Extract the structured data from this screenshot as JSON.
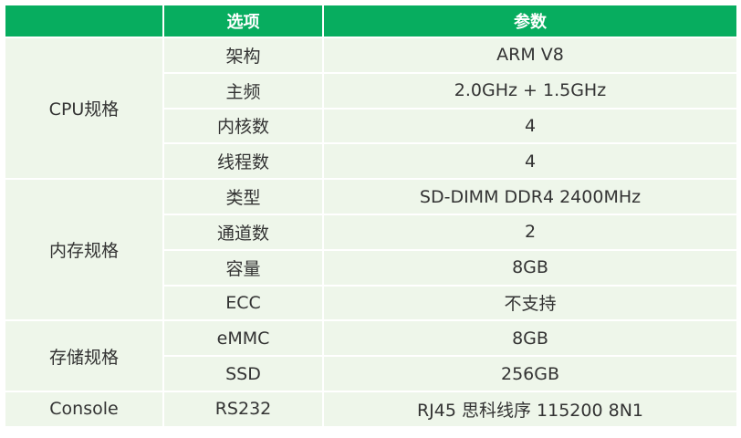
{
  "header": [
    "",
    "选项",
    "参数"
  ],
  "groups": [
    {
      "name": "CPU规格",
      "rows": [
        [
          "架构",
          "ARM V8"
        ],
        [
          "主频",
          "2.0GHz + 1.5GHz"
        ],
        [
          "内核数",
          "4"
        ],
        [
          "线程数",
          "4"
        ]
      ]
    },
    {
      "name": "内存规格",
      "rows": [
        [
          "类型",
          "SD-DIMM DDR4 2400MHz"
        ],
        [
          "通道数",
          "2"
        ],
        [
          "容量",
          "8GB"
        ],
        [
          "ECC",
          "不支持"
        ]
      ]
    },
    {
      "name": "存储规格",
      "rows": [
        [
          "eMMC",
          "8GB"
        ],
        [
          "SSD",
          "256GB"
        ]
      ]
    },
    {
      "name": "Console",
      "rows": [
        [
          "RS232",
          "RJ45 思科线序 115200 8N1"
        ]
      ]
    }
  ],
  "colors": {
    "header": "#07ad5f",
    "cell": "#eef6ea"
  }
}
